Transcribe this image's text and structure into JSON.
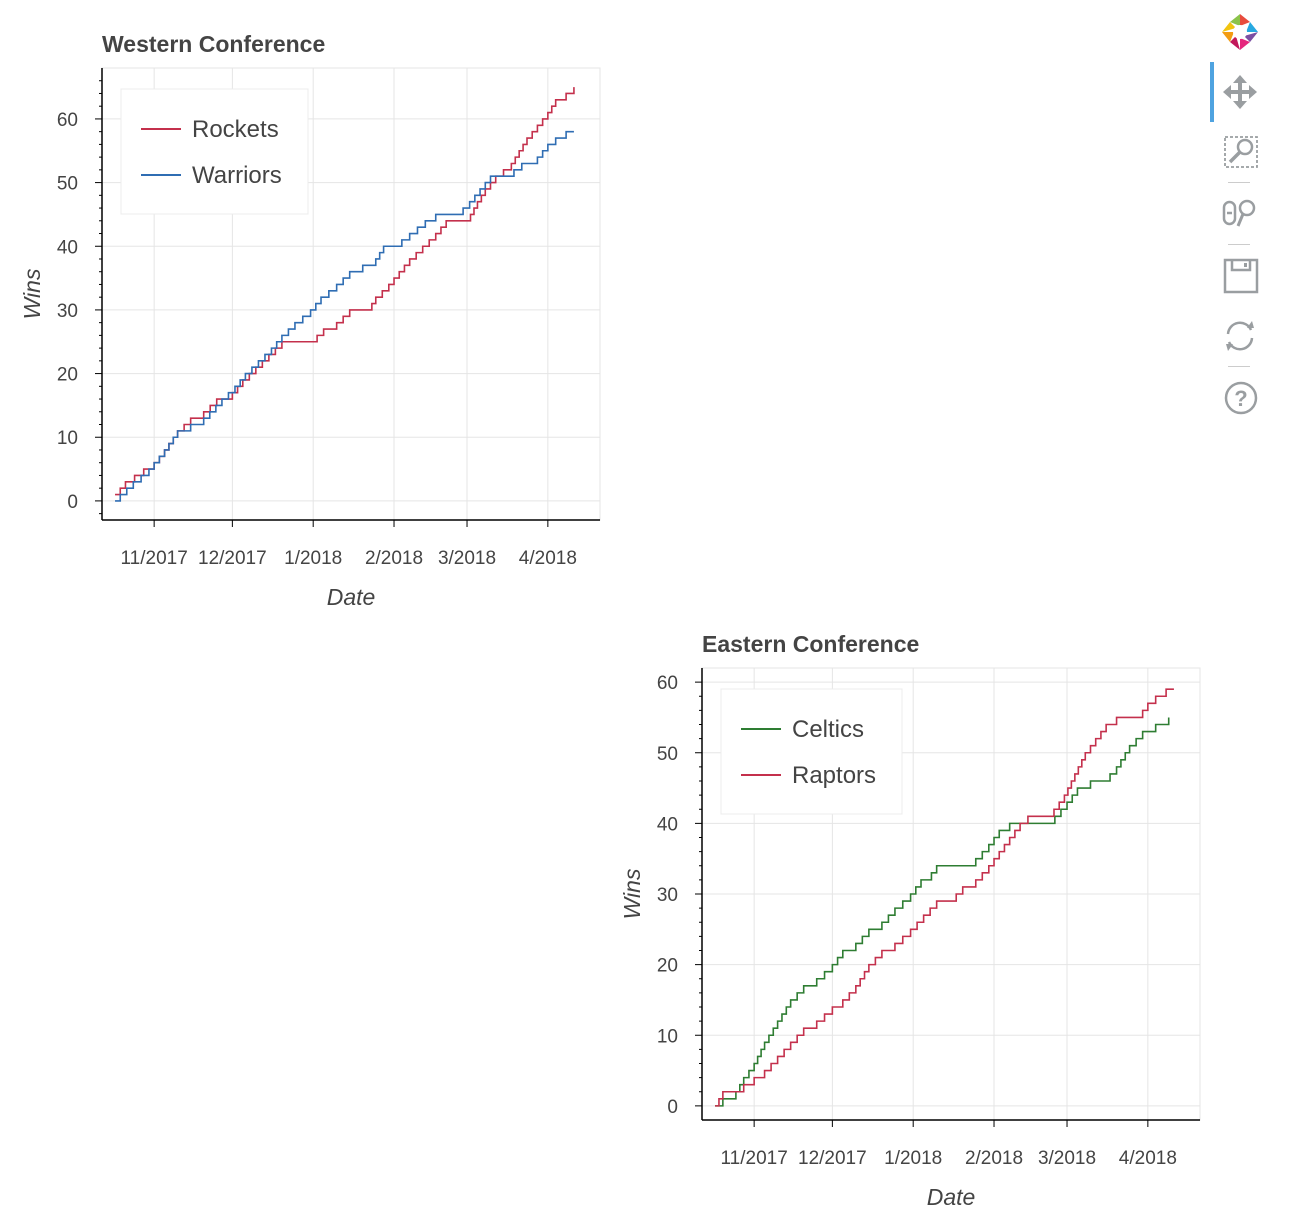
{
  "chart_data": [
    {
      "type": "line",
      "step": true,
      "title": "Western Conference",
      "xlabel": "Date",
      "ylabel": "Wins",
      "xlim": [
        "2017-10-12",
        "2018-04-21"
      ],
      "ylim": [
        -3,
        68
      ],
      "xticks": [
        {
          "date": "2017-11-01",
          "label": "11/2017"
        },
        {
          "date": "2017-12-01",
          "label": "12/2017"
        },
        {
          "date": "2018-01-01",
          "label": "1/2018"
        },
        {
          "date": "2018-02-01",
          "label": "2/2018"
        },
        {
          "date": "2018-03-01",
          "label": "3/2018"
        },
        {
          "date": "2018-04-01",
          "label": "4/2018"
        }
      ],
      "yticks": [
        "0",
        "10",
        "20",
        "30",
        "40",
        "50",
        "60"
      ],
      "grid": true,
      "legend": "top-left",
      "series": [
        {
          "name": "Rockets",
          "color": "#c4304c",
          "points": [
            [
              "2017-10-17",
              1
            ],
            [
              "2017-10-21",
              3
            ],
            [
              "2017-10-28",
              5
            ],
            [
              "2017-11-01",
              6
            ],
            [
              "2017-11-05",
              8
            ],
            [
              "2017-11-10",
              11
            ],
            [
              "2017-11-15",
              13
            ],
            [
              "2017-11-20",
              14
            ],
            [
              "2017-11-25",
              16
            ],
            [
              "2017-12-01",
              17
            ],
            [
              "2017-12-05",
              19
            ],
            [
              "2017-12-10",
              21
            ],
            [
              "2017-12-15",
              23
            ],
            [
              "2017-12-20",
              25
            ],
            [
              "2017-12-31",
              25
            ],
            [
              "2018-01-05",
              27
            ],
            [
              "2018-01-10",
              28
            ],
            [
              "2018-01-15",
              30
            ],
            [
              "2018-01-22",
              30
            ],
            [
              "2018-01-25",
              32
            ],
            [
              "2018-01-30",
              34
            ],
            [
              "2018-02-03",
              36
            ],
            [
              "2018-02-07",
              38
            ],
            [
              "2018-02-12",
              40
            ],
            [
              "2018-02-17",
              42
            ],
            [
              "2018-02-21",
              44
            ],
            [
              "2018-03-01",
              44
            ],
            [
              "2018-03-05",
              47
            ],
            [
              "2018-03-08",
              49
            ],
            [
              "2018-03-12",
              51
            ],
            [
              "2018-03-18",
              53
            ],
            [
              "2018-03-24",
              57
            ],
            [
              "2018-03-28",
              59
            ],
            [
              "2018-04-01",
              61
            ],
            [
              "2018-04-04",
              63
            ],
            [
              "2018-04-08",
              64
            ],
            [
              "2018-04-11",
              65
            ]
          ]
        },
        {
          "name": "Warriors",
          "color": "#2f6db3",
          "points": [
            [
              "2017-10-17",
              0
            ],
            [
              "2017-10-19",
              1
            ],
            [
              "2017-10-24",
              3
            ],
            [
              "2017-10-30",
              5
            ],
            [
              "2017-11-05",
              8
            ],
            [
              "2017-11-10",
              11
            ],
            [
              "2017-11-20",
              13
            ],
            [
              "2017-11-27",
              16
            ],
            [
              "2017-12-02",
              18
            ],
            [
              "2017-12-06",
              20
            ],
            [
              "2017-12-11",
              22
            ],
            [
              "2017-12-16",
              24
            ],
            [
              "2017-12-20",
              26
            ],
            [
              "2017-12-25",
              28
            ],
            [
              "2017-12-31",
              30
            ],
            [
              "2018-01-04",
              32
            ],
            [
              "2018-01-10",
              34
            ],
            [
              "2018-01-15",
              36
            ],
            [
              "2018-01-20",
              37
            ],
            [
              "2018-01-25",
              38
            ],
            [
              "2018-01-28",
              40
            ],
            [
              "2018-02-04",
              41
            ],
            [
              "2018-02-10",
              43
            ],
            [
              "2018-02-13",
              44
            ],
            [
              "2018-02-17",
              45
            ],
            [
              "2018-02-25",
              45
            ],
            [
              "2018-03-02",
              47
            ],
            [
              "2018-03-06",
              49
            ],
            [
              "2018-03-10",
              51
            ],
            [
              "2018-03-15",
              51
            ],
            [
              "2018-03-19",
              52
            ],
            [
              "2018-03-22",
              53
            ],
            [
              "2018-03-28",
              54
            ],
            [
              "2018-04-01",
              56
            ],
            [
              "2018-04-04",
              57
            ],
            [
              "2018-04-08",
              58
            ],
            [
              "2018-04-11",
              58
            ]
          ]
        }
      ]
    },
    {
      "type": "line",
      "step": true,
      "title": "Eastern Conference",
      "xlabel": "Date",
      "ylabel": "Wins",
      "xlim": [
        "2017-10-12",
        "2018-04-21"
      ],
      "ylim": [
        -2,
        62
      ],
      "xticks": [
        {
          "date": "2017-11-01",
          "label": "11/2017"
        },
        {
          "date": "2017-12-01",
          "label": "12/2017"
        },
        {
          "date": "2018-01-01",
          "label": "1/2018"
        },
        {
          "date": "2018-02-01",
          "label": "2/2018"
        },
        {
          "date": "2018-03-01",
          "label": "3/2018"
        },
        {
          "date": "2018-04-01",
          "label": "4/2018"
        }
      ],
      "yticks": [
        "0",
        "10",
        "20",
        "30",
        "40",
        "50",
        "60"
      ],
      "grid": true,
      "legend": "top-left",
      "series": [
        {
          "name": "Celtics",
          "color": "#2e7d32",
          "points": [
            [
              "2017-10-17",
              0
            ],
            [
              "2017-10-20",
              1
            ],
            [
              "2017-10-25",
              2
            ],
            [
              "2017-10-28",
              4
            ],
            [
              "2017-11-01",
              6
            ],
            [
              "2017-11-05",
              9
            ],
            [
              "2017-11-10",
              12
            ],
            [
              "2017-11-15",
              15
            ],
            [
              "2017-11-20",
              17
            ],
            [
              "2017-11-25",
              18
            ],
            [
              "2017-12-01",
              20
            ],
            [
              "2017-12-05",
              22
            ],
            [
              "2017-12-10",
              23
            ],
            [
              "2017-12-15",
              25
            ],
            [
              "2017-12-20",
              26
            ],
            [
              "2017-12-25",
              28
            ],
            [
              "2017-12-31",
              30
            ],
            [
              "2018-01-04",
              32
            ],
            [
              "2018-01-08",
              33
            ],
            [
              "2018-01-10",
              34
            ],
            [
              "2018-01-20",
              34
            ],
            [
              "2018-01-25",
              35
            ],
            [
              "2018-01-30",
              37
            ],
            [
              "2018-02-03",
              39
            ],
            [
              "2018-02-07",
              40
            ],
            [
              "2018-02-22",
              40
            ],
            [
              "2018-03-01",
              43
            ],
            [
              "2018-03-05",
              45
            ],
            [
              "2018-03-10",
              46
            ],
            [
              "2018-03-15",
              46
            ],
            [
              "2018-03-20",
              48
            ],
            [
              "2018-03-25",
              51
            ],
            [
              "2018-03-30",
              53
            ],
            [
              "2018-04-04",
              54
            ],
            [
              "2018-04-09",
              55
            ]
          ]
        },
        {
          "name": "Raptors",
          "color": "#c4304c",
          "points": [
            [
              "2017-10-17",
              0
            ],
            [
              "2017-10-20",
              2
            ],
            [
              "2017-10-25",
              2
            ],
            [
              "2017-10-28",
              3
            ],
            [
              "2017-11-01",
              4
            ],
            [
              "2017-11-05",
              5
            ],
            [
              "2017-11-10",
              7
            ],
            [
              "2017-11-15",
              9
            ],
            [
              "2017-11-20",
              11
            ],
            [
              "2017-11-25",
              12
            ],
            [
              "2017-12-01",
              14
            ],
            [
              "2017-12-05",
              15
            ],
            [
              "2017-12-10",
              17
            ],
            [
              "2017-12-15",
              20
            ],
            [
              "2017-12-20",
              22
            ],
            [
              "2017-12-25",
              23
            ],
            [
              "2017-12-31",
              25
            ],
            [
              "2018-01-05",
              27
            ],
            [
              "2018-01-10",
              29
            ],
            [
              "2018-01-15",
              29
            ],
            [
              "2018-01-20",
              31
            ],
            [
              "2018-01-25",
              32
            ],
            [
              "2018-01-30",
              34
            ],
            [
              "2018-02-03",
              36
            ],
            [
              "2018-02-07",
              38
            ],
            [
              "2018-02-11",
              40
            ],
            [
              "2018-02-14",
              41
            ],
            [
              "2018-02-22",
              41
            ],
            [
              "2018-02-28",
              44
            ],
            [
              "2018-03-04",
              47
            ],
            [
              "2018-03-08",
              50
            ],
            [
              "2018-03-12",
              52
            ],
            [
              "2018-03-16",
              54
            ],
            [
              "2018-03-20",
              55
            ],
            [
              "2018-03-28",
              55
            ],
            [
              "2018-04-01",
              57
            ],
            [
              "2018-04-04",
              58
            ],
            [
              "2018-04-08",
              59
            ],
            [
              "2018-04-11",
              59
            ]
          ]
        }
      ]
    }
  ],
  "toolbar": {
    "tools": [
      {
        "name": "pan",
        "icon": "pan-icon",
        "active": true
      },
      {
        "name": "box-zoom",
        "icon": "box-zoom-icon"
      },
      {
        "name": "wheel-zoom",
        "icon": "wheel-zoom-icon"
      },
      {
        "name": "save",
        "icon": "save-icon"
      },
      {
        "name": "reset",
        "icon": "reset-icon"
      },
      {
        "name": "help",
        "icon": "help-icon"
      }
    ],
    "accent": "#4fa3e0"
  }
}
